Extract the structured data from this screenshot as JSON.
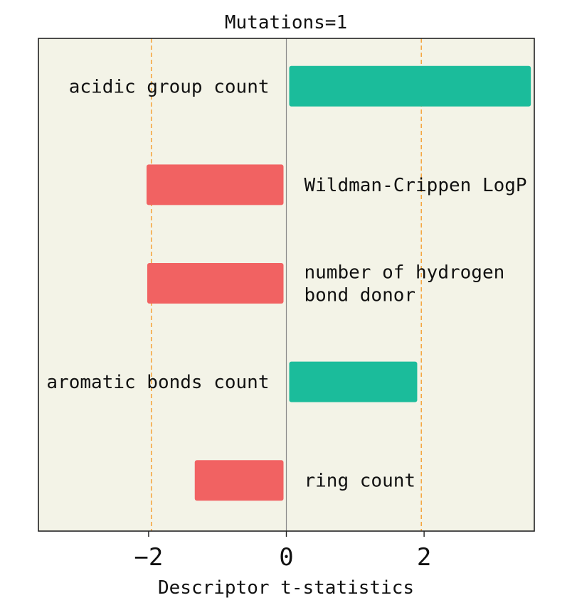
{
  "chart_data": {
    "type": "bar",
    "orientation": "horizontal",
    "title": "Mutations=1",
    "xlabel": "Descriptor t-statistics",
    "ylabel": "",
    "xlim": [
      -3.6,
      3.6
    ],
    "xticks": [
      -2,
      0,
      2
    ],
    "xtick_labels": [
      "−2",
      "0",
      "2"
    ],
    "threshold_lines": [
      -1.96,
      1.96
    ],
    "grid": false,
    "legend": "none",
    "bars": [
      {
        "label": "acidic group count",
        "value": 3.55,
        "label_lines": [
          "acidic group count"
        ]
      },
      {
        "label": "Wildman-Crippen LogP",
        "value": -2.03,
        "label_lines": [
          "Wildman-Crippen LogP"
        ]
      },
      {
        "label": "number of hydrogen bond donor",
        "value": -2.02,
        "label_lines": [
          "number of hydrogen",
          "bond donor"
        ]
      },
      {
        "label": "aromatic bonds count",
        "value": 1.9,
        "label_lines": [
          "aromatic bonds count"
        ]
      },
      {
        "label": "ring count",
        "value": -1.33,
        "label_lines": [
          "ring count"
        ]
      }
    ]
  },
  "colors": {
    "positive": "#1bbc9b",
    "negative": "#f16262",
    "threshold": "#f5a742",
    "zero_line": "#8a8a8a",
    "plot_background": "#f3f3e7",
    "axes": "#222222"
  }
}
